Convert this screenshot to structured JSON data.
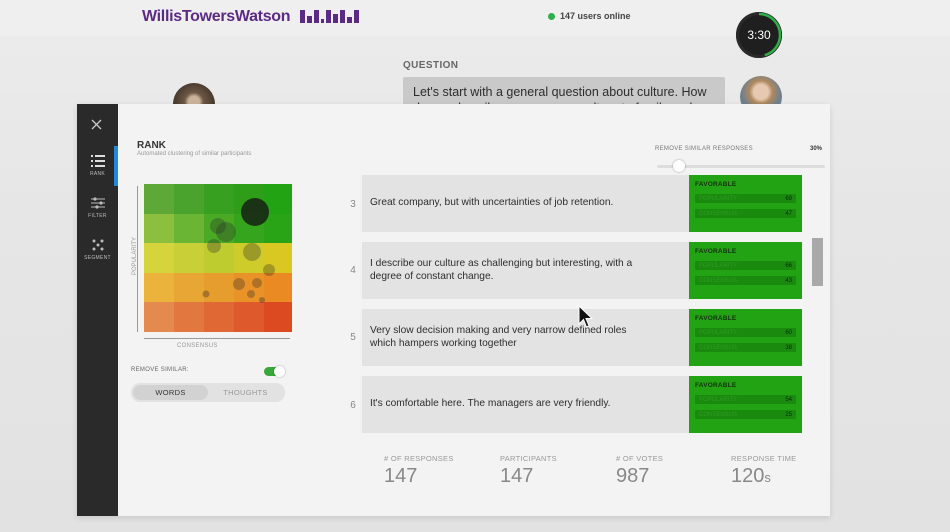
{
  "header": {
    "brand": "WillisTowersWatson",
    "users_online": "147 users online",
    "timer": "3:30"
  },
  "question": {
    "label": "QUESTION",
    "text": "Let's start with a general question about culture. How do you describe our company culture to family and friends?"
  },
  "sidebar": {
    "items": [
      {
        "label": "RANK",
        "icon": "list-icon"
      },
      {
        "label": "FILTER",
        "icon": "sliders-icon"
      },
      {
        "label": "SEGMENT",
        "icon": "grid-dots-icon"
      }
    ]
  },
  "rank": {
    "title": "RANK",
    "subtitle": "Automated clustering of similar participants",
    "y_axis": "POPULARITY",
    "x_axis": "CONSENSUS",
    "remove_similar_label": "REMOVE SIMILAR:",
    "remove_similar_on": true,
    "segments": [
      "WORDS",
      "THOUGHTS"
    ]
  },
  "responses_filter": {
    "label": "REMOVE SIMILAR RESPONSES",
    "value": "30%"
  },
  "responses": [
    {
      "rank": "3",
      "text": "Great company, but with uncertainties of job retention.",
      "badge": "FAVORABLE",
      "popularity": "69",
      "consensus": "47"
    },
    {
      "rank": "4",
      "text": "I describe our culture as challenging but interesting, with a degree of constant change.",
      "badge": "FAVORABLE",
      "popularity": "66",
      "consensus": "43"
    },
    {
      "rank": "5",
      "text": "Very slow decision making and very narrow defined roles which hampers working together",
      "badge": "FAVORABLE",
      "popularity": "60",
      "consensus": "38"
    },
    {
      "rank": "6",
      "text": "It's comfortable here. The managers are very friendly.",
      "badge": "FAVORABLE",
      "popularity": "54",
      "consensus": "25"
    }
  ],
  "bar_labels": {
    "popularity": "POPULARITY",
    "consensus": "CONSENSUS"
  },
  "stats": [
    {
      "label": "# OF RESPONSES",
      "value": "147",
      "unit": ""
    },
    {
      "label": "PARTICIPANTS",
      "value": "147",
      "unit": ""
    },
    {
      "label": "# OF VOTES",
      "value": "987",
      "unit": ""
    },
    {
      "label": "RESPONSE TIME",
      "value": "120",
      "unit": "s"
    }
  ],
  "colors": {
    "accent_green": "#22a313",
    "brand_purple": "#5b2a86",
    "active_blue": "#1f8bd8"
  }
}
